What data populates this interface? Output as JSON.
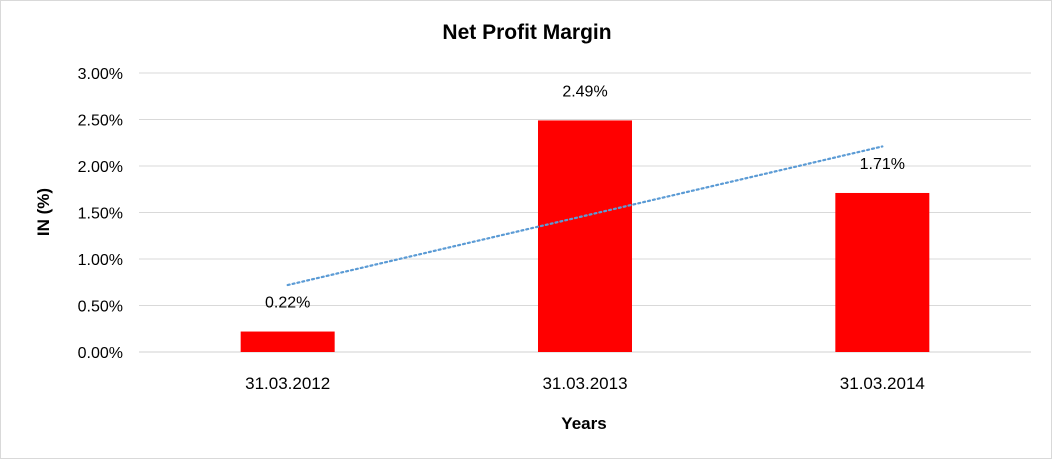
{
  "chart_data": {
    "type": "bar",
    "title": "Net Profit Margin",
    "xlabel": "Years",
    "ylabel": "IN (%)",
    "categories": [
      "31.03.2012",
      "31.03.2013",
      "31.03.2014"
    ],
    "values": [
      0.22,
      2.49,
      1.71
    ],
    "data_labels": [
      "0.22%",
      "2.49%",
      "1.71%"
    ],
    "ylim": [
      0,
      3
    ],
    "y_ticks": [
      0,
      0.5,
      1,
      1.5,
      2,
      2.5,
      3
    ],
    "y_tick_labels": [
      "0.00%",
      "0.50%",
      "1.00%",
      "1.50%",
      "2.00%",
      "2.50%",
      "3.00%"
    ],
    "grid": true,
    "legend": "none",
    "bar_color": "#ff0000",
    "trendline": {
      "type": "linear",
      "style": "dotted",
      "color": "#5b9bd5",
      "start_value": 0.72,
      "end_value": 2.21
    }
  }
}
